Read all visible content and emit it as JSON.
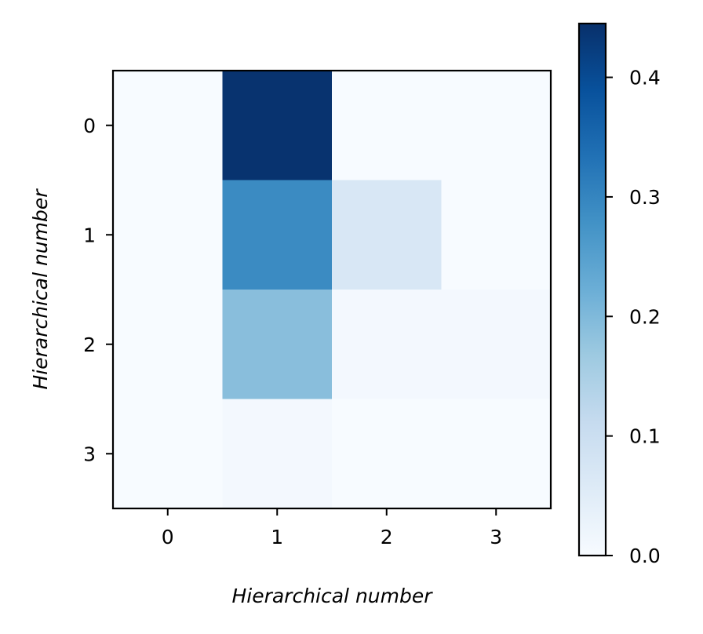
{
  "chart_data": {
    "type": "heatmap",
    "xlabel": "Hierarchical number",
    "ylabel": "Hierarchical number",
    "x_categories": [
      "0",
      "1",
      "2",
      "3"
    ],
    "y_categories": [
      "0",
      "1",
      "2",
      "3"
    ],
    "values": [
      [
        0.0,
        0.44,
        0.0,
        0.0
      ],
      [
        0.0,
        0.29,
        0.07,
        0.0
      ],
      [
        0.0,
        0.19,
        0.01,
        0.01
      ],
      [
        0.0,
        0.01,
        0.0,
        0.0
      ]
    ],
    "colormap": "Blues",
    "colorbar": {
      "range": [
        0.0,
        0.445
      ],
      "ticks": [
        0.0,
        0.1,
        0.2,
        0.3,
        0.4
      ],
      "tick_labels": [
        "0.0",
        "0.1",
        "0.2",
        "0.3",
        "0.4"
      ],
      "placement": "right"
    },
    "colors": {
      "low": "#f7fbff",
      "high": "#08306b"
    }
  }
}
